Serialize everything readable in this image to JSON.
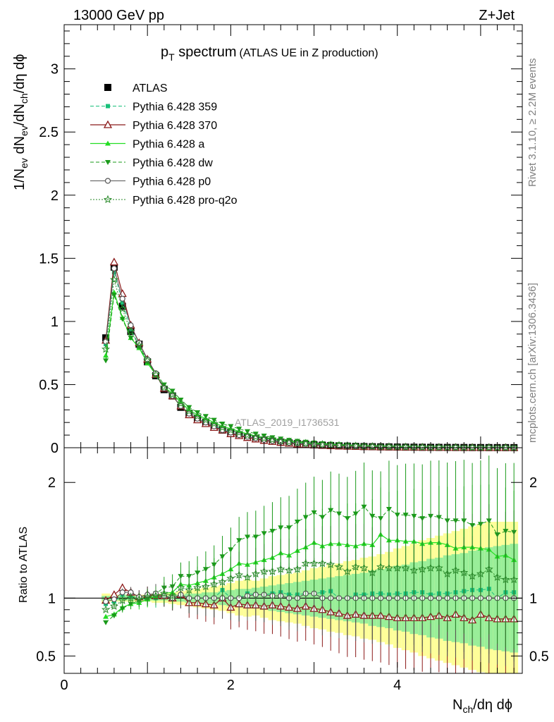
{
  "header": {
    "left": "13000 GeV pp",
    "right": "Z+Jet"
  },
  "plot_title": {
    "main": "p",
    "main_sub": "T",
    "main_rest": " spectrum",
    "paren": "(ATLAS UE in Z production)"
  },
  "side_labels": {
    "rivet": "Rivet 3.1.10, ≥ 2.2M events",
    "mcplots": "mcplots.cern.ch [arXiv:1306.3436]"
  },
  "watermark": "ATLAS_2019_I1736531",
  "colors": {
    "atlas": "#000000",
    "p359": "#18c07a",
    "p370": "#8b1a1a",
    "pa": "#22dd22",
    "pdw": "#1a9a1a",
    "pp0": "#555555",
    "pq2o": "#2a8a2a",
    "band_yellow": "#fefe99",
    "band_green": "#99ee99"
  },
  "chart_data": [
    {
      "type": "line",
      "title": "p_T spectrum (ATLAS UE in Z production)",
      "xlabel": "N_ch/dη dϕ",
      "ylabel": "1/N_ev dN_ev/dN_ch/dη dϕ",
      "xlim": [
        0,
        5.5
      ],
      "ylim": [
        0,
        3.35
      ],
      "yticks": [
        "0",
        "0.5",
        "1",
        "1.5",
        "2",
        "2.5",
        "3"
      ],
      "grid": false,
      "legend_position": "top-left",
      "x": [
        0.5,
        0.6,
        0.7,
        0.8,
        0.9,
        1.0,
        1.1,
        1.2,
        1.3,
        1.4,
        1.5,
        1.6,
        1.7,
        1.8,
        1.9,
        2.0,
        2.1,
        2.2,
        2.3,
        2.4,
        2.5,
        2.6,
        2.7,
        2.8,
        2.9,
        3.0,
        3.1,
        3.2,
        3.3,
        3.4,
        3.5,
        3.6,
        3.7,
        3.8,
        3.9,
        4.0,
        4.1,
        4.2,
        4.3,
        4.4,
        4.5,
        4.6,
        4.7,
        4.8,
        4.9,
        5.0,
        5.1,
        5.2,
        5.3,
        5.4
      ],
      "series": [
        {
          "name": "ATLAS",
          "marker": "square",
          "values": [
            0.87,
            1.43,
            1.12,
            0.92,
            0.82,
            0.68,
            0.57,
            0.46,
            0.41,
            0.32,
            0.27,
            0.23,
            0.2,
            0.17,
            0.14,
            0.12,
            0.1,
            0.085,
            0.072,
            0.061,
            0.052,
            0.044,
            0.038,
            0.032,
            0.027,
            0.023,
            0.02,
            0.017,
            0.015,
            0.013,
            0.011,
            0.0095,
            0.0082,
            0.0071,
            0.0062,
            0.0054,
            0.0047,
            0.0041,
            0.0036,
            0.0031,
            0.0027,
            0.0024,
            0.0021,
            0.0018,
            0.0016,
            0.0014,
            0.0012,
            0.0011,
            0.00095,
            0.00083
          ]
        },
        {
          "name": "Pythia 6.428 359",
          "marker": "smallsquare",
          "values": [
            0.82,
            1.39,
            1.15,
            0.94,
            0.81,
            0.68,
            0.57,
            0.47,
            0.41,
            0.33,
            0.27,
            0.23,
            0.2,
            0.17,
            0.15,
            0.12,
            0.1,
            0.088,
            0.074,
            0.063,
            0.054,
            0.046,
            0.039,
            0.033,
            0.028,
            0.024,
            0.021,
            0.018,
            0.015,
            0.013,
            0.011,
            0.0098,
            0.0085,
            0.0074,
            0.0064,
            0.0056,
            0.0049,
            0.0043,
            0.0037,
            0.0032,
            0.0028,
            0.0025,
            0.0022,
            0.0019,
            0.0017,
            0.0015,
            0.0013,
            0.0011,
            0.001,
            0.00087
          ]
        },
        {
          "name": "Pythia 6.428 370",
          "marker": "triangle-open",
          "values": [
            0.85,
            1.47,
            1.22,
            0.97,
            0.83,
            0.7,
            0.58,
            0.47,
            0.41,
            0.33,
            0.26,
            0.22,
            0.19,
            0.16,
            0.14,
            0.11,
            0.095,
            0.08,
            0.068,
            0.057,
            0.049,
            0.041,
            0.035,
            0.029,
            0.025,
            0.021,
            0.018,
            0.015,
            0.013,
            0.011,
            0.0095,
            0.0081,
            0.007,
            0.006,
            0.0052,
            0.0045,
            0.0039,
            0.0034,
            0.003,
            0.0026,
            0.0023,
            0.002,
            0.0018,
            0.0015,
            0.0013,
            0.0012,
            0.001,
            0.0009,
            0.00078,
            0.00068
          ]
        },
        {
          "name": "Pythia 6.428 a",
          "marker": "triangle",
          "values": [
            0.73,
            1.23,
            1.03,
            0.87,
            0.79,
            0.67,
            0.58,
            0.48,
            0.43,
            0.36,
            0.3,
            0.26,
            0.23,
            0.2,
            0.17,
            0.15,
            0.13,
            0.11,
            0.094,
            0.081,
            0.07,
            0.061,
            0.052,
            0.045,
            0.039,
            0.034,
            0.029,
            0.025,
            0.022,
            0.019,
            0.016,
            0.014,
            0.012,
            0.011,
            0.0093,
            0.0081,
            0.007,
            0.0061,
            0.0053,
            0.0046,
            0.004,
            0.0035,
            0.003,
            0.0026,
            0.0023,
            0.002,
            0.0017,
            0.0015,
            0.0013,
            0.0011
          ]
        },
        {
          "name": "Pythia 6.428 dw",
          "marker": "triangle-down",
          "values": [
            0.69,
            1.21,
            1.02,
            0.87,
            0.8,
            0.68,
            0.59,
            0.5,
            0.45,
            0.38,
            0.32,
            0.28,
            0.25,
            0.22,
            0.19,
            0.17,
            0.15,
            0.13,
            0.11,
            0.095,
            0.082,
            0.071,
            0.061,
            0.053,
            0.046,
            0.04,
            0.034,
            0.03,
            0.026,
            0.022,
            0.019,
            0.017,
            0.014,
            0.012,
            0.011,
            0.0093,
            0.0081,
            0.007,
            0.0061,
            0.0053,
            0.0046,
            0.004,
            0.0035,
            0.003,
            0.0026,
            0.0023,
            0.002,
            0.0017,
            0.0015,
            0.0013
          ]
        },
        {
          "name": "Pythia 6.428 p0",
          "marker": "circle-open",
          "values": [
            0.84,
            1.42,
            1.18,
            0.97,
            0.83,
            0.7,
            0.59,
            0.47,
            0.41,
            0.33,
            0.27,
            0.23,
            0.2,
            0.17,
            0.14,
            0.12,
            0.1,
            0.087,
            0.074,
            0.063,
            0.053,
            0.045,
            0.038,
            0.032,
            0.028,
            0.024,
            0.02,
            0.017,
            0.015,
            0.013,
            0.011,
            0.0095,
            0.0082,
            0.0071,
            0.0062,
            0.0054,
            0.0047,
            0.0041,
            0.0036,
            0.0031,
            0.0027,
            0.0024,
            0.0021,
            0.0018,
            0.0016,
            0.0014,
            0.0012,
            0.0011,
            0.00095,
            0.00083
          ]
        },
        {
          "name": "Pythia 6.428 pro-q2o",
          "marker": "star",
          "values": [
            0.78,
            1.33,
            1.1,
            0.92,
            0.81,
            0.69,
            0.58,
            0.48,
            0.42,
            0.35,
            0.29,
            0.25,
            0.22,
            0.19,
            0.16,
            0.14,
            0.12,
            0.1,
            0.087,
            0.075,
            0.064,
            0.055,
            0.047,
            0.04,
            0.035,
            0.03,
            0.026,
            0.022,
            0.019,
            0.016,
            0.014,
            0.012,
            0.01,
            0.009,
            0.0078,
            0.0068,
            0.0059,
            0.0051,
            0.0045,
            0.0039,
            0.0034,
            0.0029,
            0.0026,
            0.0022,
            0.0019,
            0.0017,
            0.0015,
            0.0013,
            0.0011,
            0.00096
          ]
        }
      ]
    },
    {
      "type": "line",
      "ylabel": "Ratio to ATLAS",
      "xlabel": "N_ch/dη dϕ",
      "xlim": [
        0,
        5.5
      ],
      "ylim": [
        0.35,
        2.3
      ],
      "xticks": [
        "0",
        "2",
        "4"
      ],
      "yticks": [
        "0.5",
        "1",
        "2"
      ],
      "reference_line": 1,
      "x": [
        0.5,
        0.6,
        0.7,
        0.8,
        0.9,
        1.0,
        1.1,
        1.2,
        1.3,
        1.4,
        1.5,
        1.6,
        1.7,
        1.8,
        1.9,
        2.0,
        2.1,
        2.2,
        2.3,
        2.4,
        2.5,
        2.6,
        2.7,
        2.8,
        2.9,
        3.0,
        3.1,
        3.2,
        3.3,
        3.4,
        3.5,
        3.6,
        3.7,
        3.8,
        3.9,
        4.0,
        4.1,
        4.2,
        4.3,
        4.4,
        4.5,
        4.6,
        4.7,
        4.8,
        4.9,
        5.0,
        5.1,
        5.2,
        5.3,
        5.4
      ],
      "band_yellow_halfwidth": [
        0.04,
        0.03,
        0.03,
        0.03,
        0.03,
        0.03,
        0.04,
        0.04,
        0.05,
        0.06,
        0.07,
        0.08,
        0.09,
        0.1,
        0.11,
        0.13,
        0.15,
        0.16,
        0.15,
        0.17,
        0.19,
        0.2,
        0.21,
        0.22,
        0.24,
        0.26,
        0.27,
        0.29,
        0.3,
        0.32,
        0.33,
        0.35,
        0.36,
        0.38,
        0.4,
        0.43,
        0.45,
        0.47,
        0.5,
        0.52,
        0.54,
        0.56,
        0.58,
        0.6,
        0.62,
        0.64,
        0.66,
        0.66,
        0.66,
        0.66
      ],
      "band_green_halfwidth": [
        0.02,
        0.02,
        0.02,
        0.02,
        0.02,
        0.02,
        0.02,
        0.02,
        0.03,
        0.03,
        0.04,
        0.04,
        0.05,
        0.05,
        0.06,
        0.07,
        0.08,
        0.08,
        0.09,
        0.1,
        0.11,
        0.12,
        0.13,
        0.14,
        0.15,
        0.16,
        0.17,
        0.18,
        0.19,
        0.2,
        0.21,
        0.22,
        0.24,
        0.25,
        0.26,
        0.28,
        0.29,
        0.31,
        0.32,
        0.34,
        0.35,
        0.37,
        0.38,
        0.39,
        0.41,
        0.42,
        0.44,
        0.45,
        0.46,
        0.47
      ],
      "series": [
        {
          "name": "Pythia 6.428 359",
          "values": [
            0.95,
            0.97,
            1.03,
            1.02,
            0.99,
            1.0,
            1.0,
            1.02,
            1.0,
            1.03,
            1.0,
            1.0,
            1.0,
            1.0,
            1.07,
            1.0,
            1.0,
            1.04,
            1.03,
            1.03,
            1.04,
            1.05,
            1.03,
            1.03,
            1.04,
            1.04,
            1.05,
            1.06,
            1.0,
            1.0,
            1.03,
            1.03,
            1.04,
            1.04,
            1.03,
            1.04,
            1.04,
            1.05,
            1.05,
            1.03,
            1.04,
            1.04,
            1.05,
            1.06,
            1.07,
            1.07,
            1.08,
            1.0,
            1.05,
            1.05
          ]
        },
        {
          "name": "Pythia 6.428 370",
          "values": [
            0.98,
            1.03,
            1.09,
            1.05,
            1.01,
            1.03,
            1.02,
            1.02,
            1.0,
            1.03,
            0.96,
            0.96,
            0.95,
            0.94,
            1.0,
            0.92,
            0.95,
            0.94,
            0.94,
            0.93,
            0.94,
            0.93,
            0.92,
            0.91,
            0.93,
            0.91,
            0.9,
            0.88,
            0.87,
            0.85,
            0.86,
            0.85,
            0.85,
            0.85,
            0.84,
            0.83,
            0.83,
            0.83,
            0.83,
            0.84,
            0.85,
            0.83,
            0.86,
            0.83,
            0.81,
            0.86,
            0.83,
            0.82,
            0.82,
            0.82
          ]
        },
        {
          "name": "Pythia 6.428 a",
          "values": [
            0.84,
            0.86,
            0.92,
            0.95,
            0.96,
            0.99,
            1.02,
            1.04,
            1.05,
            1.12,
            1.11,
            1.13,
            1.15,
            1.18,
            1.21,
            1.25,
            1.3,
            1.29,
            1.31,
            1.33,
            1.35,
            1.39,
            1.37,
            1.41,
            1.44,
            1.48,
            1.45,
            1.47,
            1.47,
            1.46,
            1.45,
            1.47,
            1.46,
            1.55,
            1.5,
            1.5,
            1.49,
            1.49,
            1.47,
            1.48,
            1.48,
            1.46,
            1.43,
            1.44,
            1.44,
            1.43,
            1.42,
            1.36,
            1.37,
            1.33
          ]
        },
        {
          "name": "Pythia 6.428 dw",
          "values": [
            0.79,
            0.85,
            0.91,
            0.95,
            0.98,
            1.0,
            1.04,
            1.09,
            1.1,
            1.19,
            1.19,
            1.22,
            1.25,
            1.29,
            1.36,
            1.42,
            1.5,
            1.53,
            1.53,
            1.56,
            1.58,
            1.61,
            1.61,
            1.66,
            1.7,
            1.74,
            1.7,
            1.76,
            1.73,
            1.69,
            1.73,
            1.79,
            1.71,
            1.69,
            1.77,
            1.72,
            1.72,
            1.71,
            1.69,
            1.71,
            1.7,
            1.67,
            1.67,
            1.67,
            1.63,
            1.64,
            1.67,
            1.55,
            1.58,
            1.57
          ]
        },
        {
          "name": "Pythia 6.428 p0",
          "values": [
            0.97,
            0.99,
            1.05,
            1.05,
            1.01,
            1.03,
            1.04,
            1.02,
            1.0,
            1.03,
            1.0,
            1.0,
            1.0,
            1.0,
            1.0,
            1.0,
            1.0,
            1.02,
            1.03,
            1.03,
            1.02,
            1.02,
            1.0,
            1.0,
            1.04,
            1.04,
            1.0,
            1.0,
            1.0,
            1.0,
            1.0,
            1.0,
            1.0,
            1.0,
            1.0,
            1.0,
            1.0,
            1.0,
            1.0,
            1.0,
            1.0,
            1.0,
            1.0,
            1.0,
            1.0,
            1.0,
            1.0,
            1.0,
            1.0,
            1.0
          ]
        },
        {
          "name": "Pythia 6.428 pro-q2o",
          "values": [
            0.9,
            0.93,
            0.98,
            1.0,
            0.99,
            1.01,
            1.02,
            1.04,
            1.02,
            1.09,
            1.07,
            1.09,
            1.1,
            1.12,
            1.14,
            1.17,
            1.2,
            1.18,
            1.21,
            1.23,
            1.23,
            1.25,
            1.24,
            1.25,
            1.3,
            1.3,
            1.3,
            1.29,
            1.27,
            1.23,
            1.27,
            1.26,
            1.22,
            1.27,
            1.26,
            1.26,
            1.26,
            1.24,
            1.25,
            1.26,
            1.26,
            1.21,
            1.24,
            1.22,
            1.19,
            1.21,
            1.25,
            1.18,
            1.16,
            1.16
          ]
        }
      ]
    }
  ],
  "legend": [
    {
      "label": "ATLAS",
      "key": "atlas"
    },
    {
      "label": "Pythia 6.428 359",
      "key": "p359"
    },
    {
      "label": "Pythia 6.428 370",
      "key": "p370"
    },
    {
      "label": "Pythia 6.428 a",
      "key": "pa"
    },
    {
      "label": "Pythia 6.428 dw",
      "key": "pdw"
    },
    {
      "label": "Pythia 6.428 p0",
      "key": "pp0"
    },
    {
      "label": "Pythia 6.428 pro-q2o",
      "key": "pq2o"
    }
  ]
}
